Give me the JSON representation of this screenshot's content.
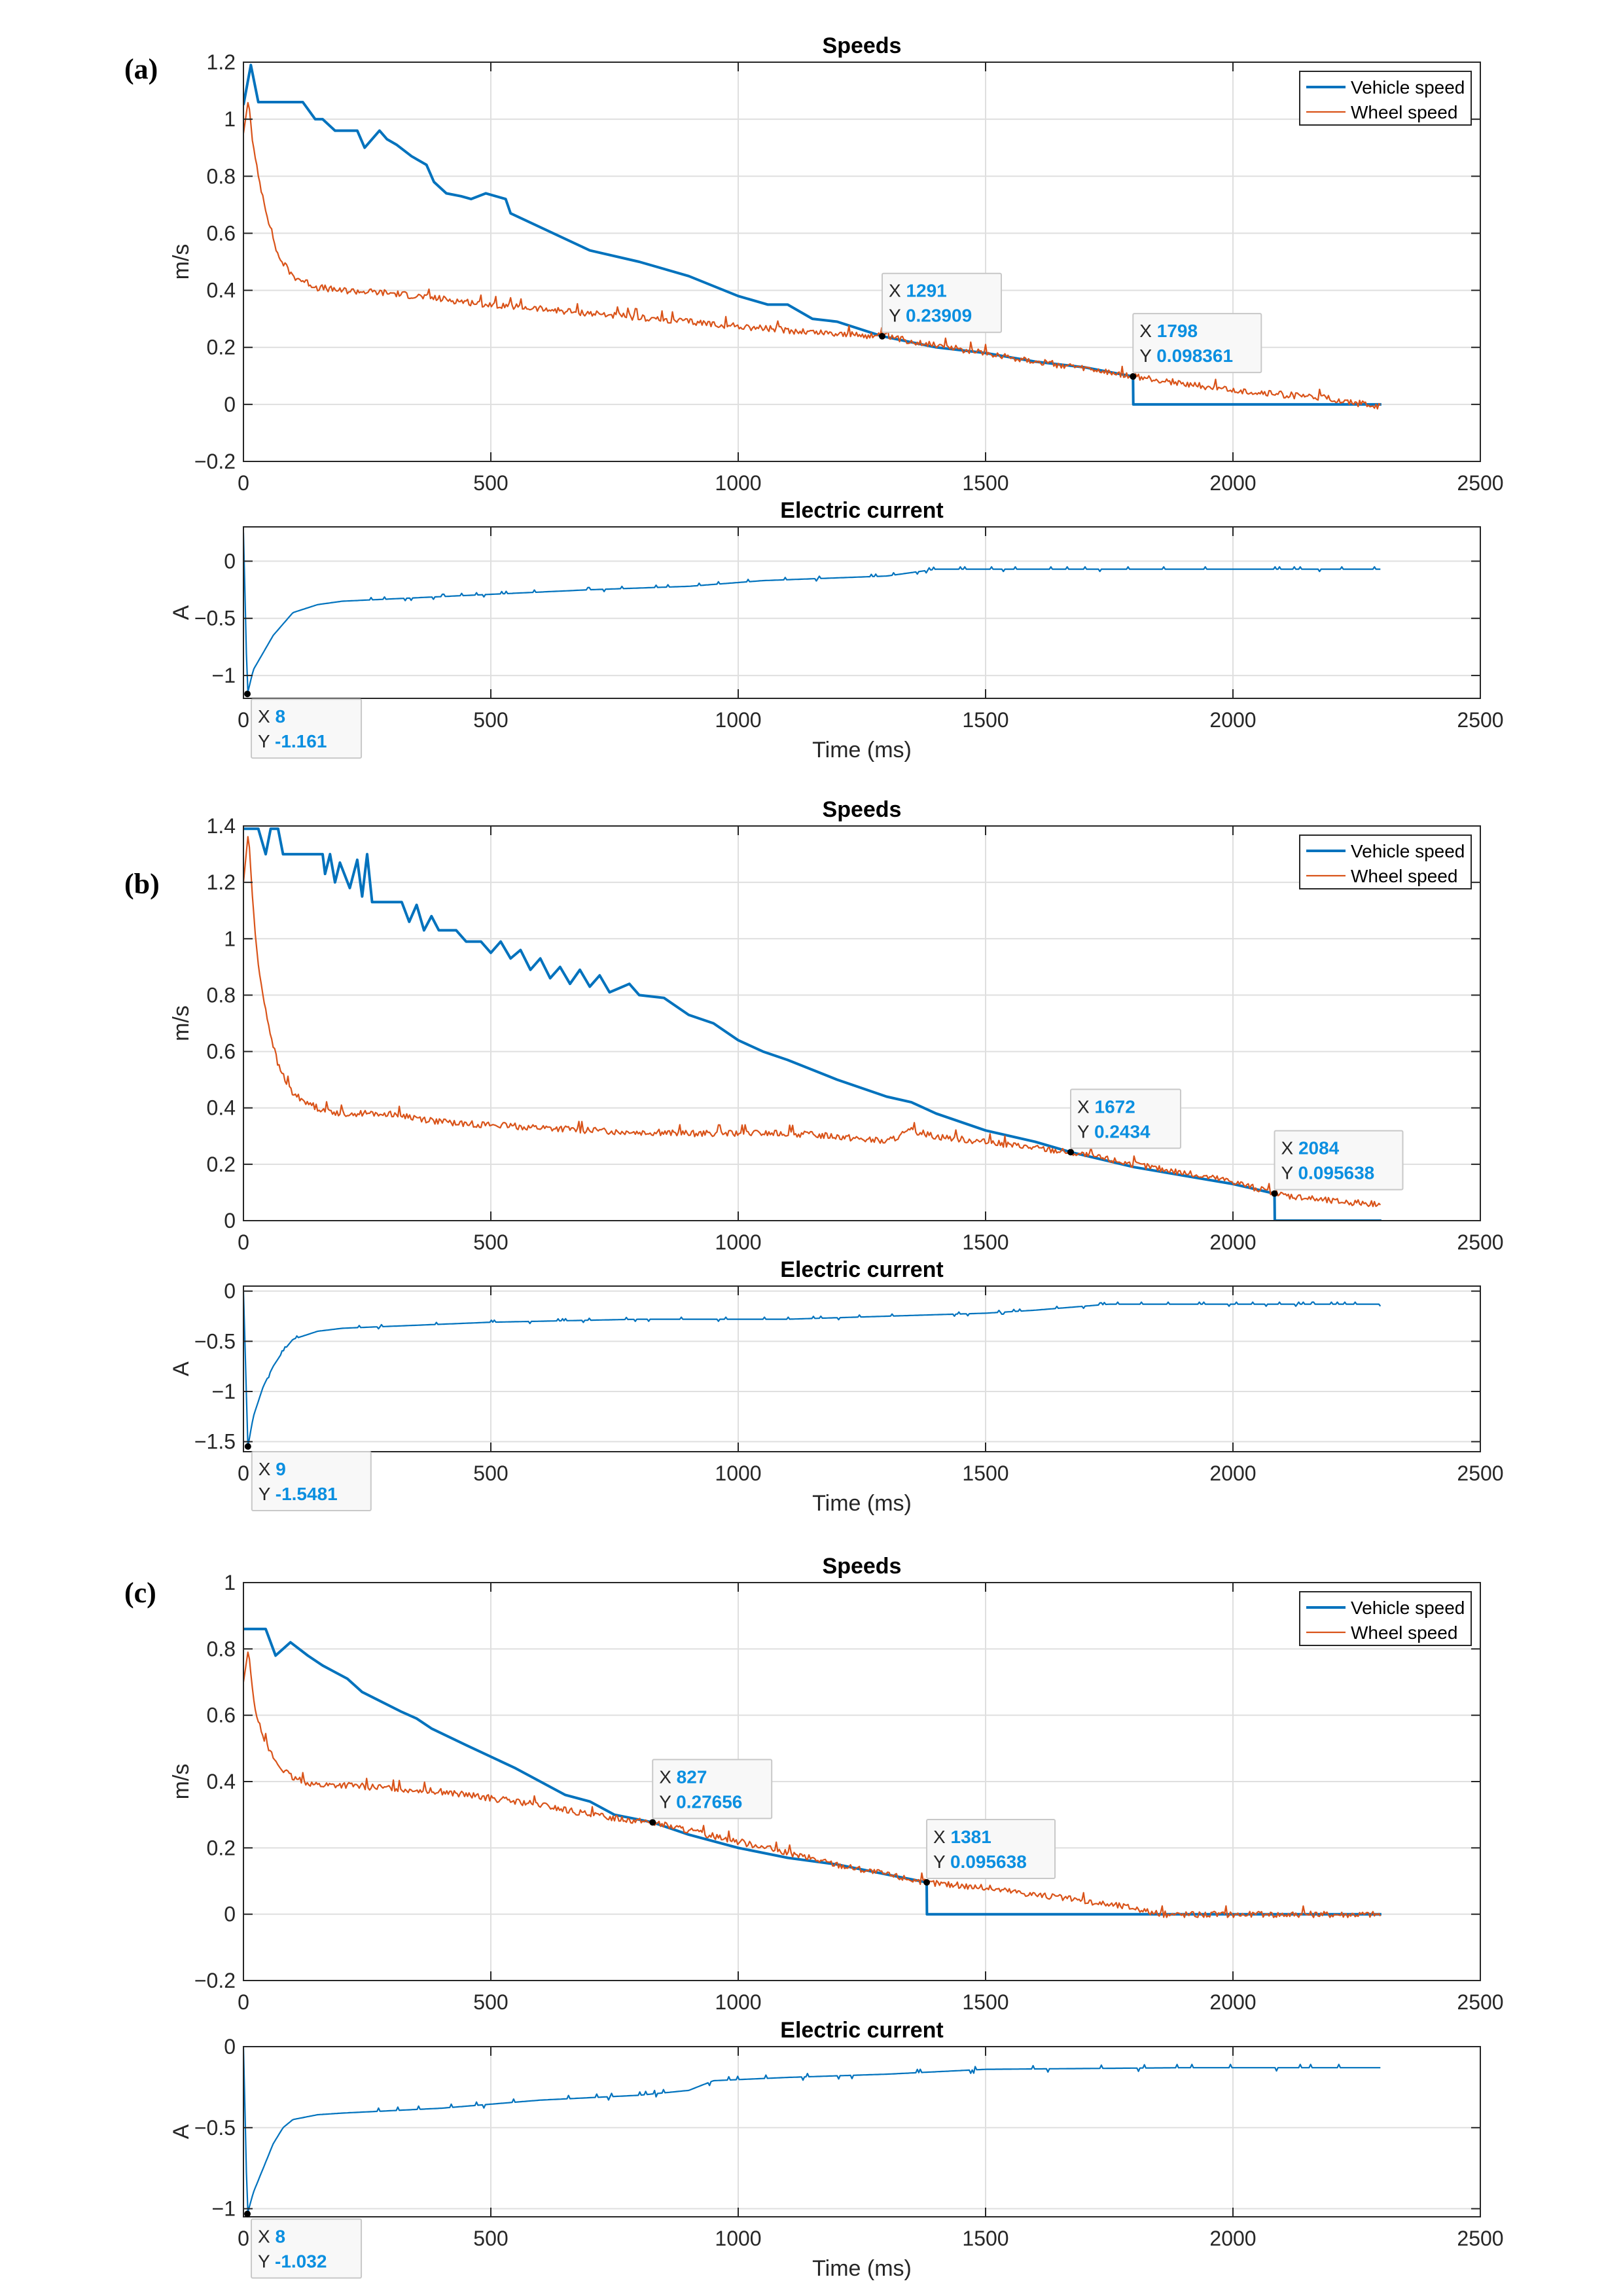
{
  "panels": [
    {
      "label": "(a)",
      "speeds": {
        "type": "line",
        "title": "Speeds",
        "xlabel": "",
        "ylabel": "m/s",
        "xlim": [
          0,
          2500
        ],
        "ylim": [
          -0.2,
          1.2
        ],
        "xticks": [
          0,
          500,
          1000,
          1500,
          2000,
          2500
        ],
        "yticks": [
          -0.2,
          0,
          0.2,
          0.4,
          0.6,
          0.8,
          1,
          1.2
        ],
        "ytick_labels": [
          "−0.2",
          "0",
          "0.2",
          "0.4",
          "0.6",
          "0.8",
          "1",
          "1.2"
        ],
        "grid": true,
        "legend": "top-right",
        "series": [
          {
            "name": "Vehicle speed",
            "color": "#0072BD",
            "x": [
              0,
              15,
              30,
              120,
              145,
              160,
              185,
              230,
              245,
              275,
              290,
              310,
              340,
              370,
              385,
              410,
              440,
              460,
              490,
              530,
              540,
              700,
              800,
              900,
              1000,
              1060,
              1100,
              1150,
              1200,
              1291,
              1400,
              1500,
              1600,
              1700,
              1798,
              1798.5,
              2300
            ],
            "y": [
              1.05,
              1.19,
              1.06,
              1.06,
              1.0,
              1.0,
              0.96,
              0.96,
              0.9,
              0.96,
              0.93,
              0.91,
              0.87,
              0.84,
              0.78,
              0.74,
              0.73,
              0.72,
              0.74,
              0.72,
              0.67,
              0.54,
              0.5,
              0.45,
              0.38,
              0.35,
              0.35,
              0.3,
              0.29,
              0.239,
              0.2,
              0.18,
              0.15,
              0.13,
              0.098,
              0,
              0
            ]
          },
          {
            "name": "Wheel speed",
            "color": "#D95319",
            "noise": 0.012,
            "x": [
              0,
              10,
              20,
              30,
              50,
              70,
              100,
              150,
              200,
              300,
              400,
              500,
              700,
              900,
              1100,
              1291,
              1500,
              1798,
              2000,
              2200,
              2300
            ],
            "y": [
              0.95,
              1.07,
              0.9,
              0.8,
              0.65,
              0.52,
              0.45,
              0.41,
              0.4,
              0.39,
              0.37,
              0.35,
              0.32,
              0.29,
              0.26,
              0.239,
              0.18,
              0.098,
              0.05,
              0.02,
              -0.01
            ]
          }
        ],
        "annotations": [
          {
            "x": 1291,
            "y": 0.239,
            "x_text": "1291",
            "y_text": "0.23909",
            "placement": "above-right"
          },
          {
            "x": 1798,
            "y": 0.098,
            "x_text": "1798",
            "y_text": "0.098361",
            "placement": "above-right"
          }
        ]
      },
      "current": {
        "type": "line",
        "title": "Electric current",
        "xlabel": "Time (ms)",
        "ylabel": "A",
        "xlim": [
          0,
          2500
        ],
        "ylim": [
          -1.2,
          0.3
        ],
        "xticks": [
          0,
          500,
          1000,
          1500,
          2000,
          2500
        ],
        "yticks": [
          -1,
          -0.5,
          0
        ],
        "ytick_labels": [
          "−1",
          "−0.5",
          "0"
        ],
        "grid": true,
        "series": [
          {
            "name": "Current",
            "color": "#0072BD",
            "noise": 0.02,
            "x": [
              0,
              8,
              20,
              40,
              60,
              80,
              100,
              150,
              200,
              300,
              500,
              700,
              900,
              1050,
              1300,
              1400,
              1500,
              2000,
              2300
            ],
            "y": [
              0.25,
              -1.161,
              -0.95,
              -0.8,
              -0.65,
              -0.55,
              -0.45,
              -0.38,
              -0.35,
              -0.33,
              -0.29,
              -0.25,
              -0.22,
              -0.17,
              -0.13,
              -0.07,
              -0.07,
              -0.07,
              -0.07
            ]
          }
        ],
        "annotations": [
          {
            "x": 8,
            "y": -1.161,
            "x_text": "8",
            "y_text": "-1.161",
            "placement": "below-right"
          }
        ]
      }
    },
    {
      "label": "(b)",
      "speeds": {
        "type": "line",
        "title": "Speeds",
        "xlabel": "",
        "ylabel": "m/s",
        "xlim": [
          0,
          2500
        ],
        "ylim": [
          0,
          1.4
        ],
        "xticks": [
          0,
          500,
          1000,
          1500,
          2000,
          2500
        ],
        "yticks": [
          0,
          0.2,
          0.4,
          0.6,
          0.8,
          1,
          1.2,
          1.4
        ],
        "ytick_labels": [
          "0",
          "0.2",
          "0.4",
          "0.6",
          "0.8",
          "1",
          "1.2",
          "1.4"
        ],
        "grid": true,
        "legend": "top-right",
        "series": [
          {
            "name": "Vehicle speed",
            "color": "#0072BD",
            "x": [
              0,
              30,
              45,
              55,
              70,
              80,
              160,
              165,
              175,
              185,
              195,
              215,
              230,
              240,
              250,
              260,
              280,
              320,
              335,
              350,
              365,
              380,
              395,
              430,
              450,
              480,
              500,
              520,
              540,
              560,
              580,
              600,
              620,
              640,
              660,
              680,
              700,
              720,
              740,
              780,
              800,
              850,
              900,
              950,
              1000,
              1050,
              1100,
              1200,
              1300,
              1350,
              1400,
              1500,
              1600,
              1672,
              1800,
              1900,
              2000,
              2084,
              2084.5,
              2300
            ],
            "y": [
              1.39,
              1.39,
              1.3,
              1.39,
              1.39,
              1.3,
              1.3,
              1.23,
              1.3,
              1.2,
              1.27,
              1.18,
              1.28,
              1.15,
              1.3,
              1.13,
              1.13,
              1.13,
              1.06,
              1.12,
              1.03,
              1.08,
              1.03,
              1.03,
              0.99,
              0.99,
              0.95,
              0.99,
              0.93,
              0.96,
              0.89,
              0.93,
              0.86,
              0.9,
              0.84,
              0.89,
              0.83,
              0.87,
              0.81,
              0.84,
              0.8,
              0.79,
              0.73,
              0.7,
              0.64,
              0.6,
              0.57,
              0.5,
              0.44,
              0.42,
              0.38,
              0.32,
              0.28,
              0.243,
              0.19,
              0.16,
              0.13,
              0.096,
              0,
              0
            ]
          },
          {
            "name": "Wheel speed",
            "color": "#D95319",
            "noise": 0.012,
            "x": [
              0,
              10,
              20,
              30,
              50,
              70,
              100,
              150,
              200,
              300,
              400,
              500,
              700,
              900,
              1100,
              1200,
              1300,
              1350,
              1400,
              1500,
              1672,
              1800,
              2000,
              2084,
              2200,
              2300
            ],
            "y": [
              1.2,
              1.38,
              1.1,
              0.9,
              0.7,
              0.55,
              0.45,
              0.4,
              0.38,
              0.38,
              0.35,
              0.34,
              0.32,
              0.31,
              0.31,
              0.3,
              0.28,
              0.32,
              0.3,
              0.28,
              0.243,
              0.2,
              0.14,
              0.096,
              0.07,
              0.06
            ]
          }
        ],
        "annotations": [
          {
            "x": 1672,
            "y": 0.243,
            "x_text": "1672",
            "y_text": "0.2434",
            "placement": "above-right"
          },
          {
            "x": 2084,
            "y": 0.096,
            "x_text": "2084",
            "y_text": "0.095638",
            "placement": "above-right"
          }
        ]
      },
      "current": {
        "type": "line",
        "title": "Electric current",
        "xlabel": "Time (ms)",
        "ylabel": "A",
        "xlim": [
          0,
          2500
        ],
        "ylim": [
          -1.6,
          0.05
        ],
        "xticks": [
          0,
          500,
          1000,
          1500,
          2000,
          2500
        ],
        "yticks": [
          -1.5,
          -1,
          -0.5,
          0
        ],
        "ytick_labels": [
          "−1.5",
          "−1",
          "−0.5",
          "0"
        ],
        "grid": true,
        "series": [
          {
            "name": "Current",
            "color": "#0072BD",
            "noise": 0.02,
            "x": [
              0,
              9,
              20,
              40,
              60,
              80,
              100,
              150,
              200,
              300,
              500,
              800,
              1100,
              1300,
              1500,
              1600,
              1750,
              2300
            ],
            "y": [
              0,
              -1.548,
              -1.25,
              -0.95,
              -0.75,
              -0.6,
              -0.48,
              -0.4,
              -0.37,
              -0.35,
              -0.31,
              -0.28,
              -0.28,
              -0.25,
              -0.22,
              -0.19,
              -0.13,
              -0.13
            ]
          }
        ],
        "annotations": [
          {
            "x": 9,
            "y": -1.548,
            "x_text": "9",
            "y_text": "-1.5481",
            "placement": "below-right"
          }
        ]
      }
    },
    {
      "label": "(c)",
      "speeds": {
        "type": "line",
        "title": "Speeds",
        "xlabel": "",
        "ylabel": "m/s",
        "xlim": [
          0,
          2500
        ],
        "ylim": [
          -0.2,
          1.0
        ],
        "xticks": [
          0,
          500,
          1000,
          1500,
          2000,
          2500
        ],
        "yticks": [
          -0.2,
          0,
          0.2,
          0.4,
          0.6,
          0.8,
          1
        ],
        "ytick_labels": [
          "−0.2",
          "0",
          "0.2",
          "0.4",
          "0.6",
          "0.8",
          "1"
        ],
        "grid": true,
        "legend": "top-right",
        "series": [
          {
            "name": "Vehicle speed",
            "color": "#0072BD",
            "x": [
              0,
              45,
              65,
              95,
              130,
              160,
              210,
              240,
              280,
              320,
              350,
              380,
              450,
              550,
              600,
              650,
              700,
              750,
              827,
              900,
              1000,
              1100,
              1200,
              1300,
              1381,
              1381.5,
              2300
            ],
            "y": [
              0.86,
              0.86,
              0.78,
              0.82,
              0.78,
              0.75,
              0.71,
              0.67,
              0.64,
              0.61,
              0.59,
              0.56,
              0.51,
              0.44,
              0.4,
              0.36,
              0.34,
              0.3,
              0.277,
              0.24,
              0.2,
              0.17,
              0.15,
              0.12,
              0.096,
              0,
              0
            ]
          },
          {
            "name": "Wheel speed",
            "color": "#D95319",
            "noise": 0.01,
            "x": [
              0,
              10,
              20,
              30,
              50,
              70,
              100,
              150,
              200,
              300,
              400,
              500,
              600,
              700,
              827,
              1000,
              1200,
              1381,
              1500,
              1600,
              1700,
              1800,
              1850,
              2000,
              2300
            ],
            "y": [
              0.7,
              0.8,
              0.65,
              0.58,
              0.5,
              0.45,
              0.41,
              0.39,
              0.39,
              0.38,
              0.37,
              0.35,
              0.33,
              0.3,
              0.277,
              0.22,
              0.15,
              0.096,
              0.08,
              0.06,
              0.04,
              0.02,
              0.0,
              0.0,
              0.0
            ]
          }
        ],
        "annotations": [
          {
            "x": 827,
            "y": 0.277,
            "x_text": "827",
            "y_text": "0.27656",
            "placement": "above-right"
          },
          {
            "x": 1381,
            "y": 0.096,
            "x_text": "1381",
            "y_text": "0.095638",
            "placement": "above-right"
          }
        ]
      },
      "current": {
        "type": "line",
        "title": "Electric current",
        "xlabel": "Time (ms)",
        "ylabel": "A",
        "xlim": [
          0,
          2500
        ],
        "ylim": [
          -1.05,
          0
        ],
        "xticks": [
          0,
          500,
          1000,
          1500,
          2000,
          2500
        ],
        "yticks": [
          -1,
          -0.5,
          0
        ],
        "ytick_labels": [
          "−1",
          "−0.5",
          "0"
        ],
        "grid": true,
        "series": [
          {
            "name": "Current",
            "color": "#0072BD",
            "noise": 0.02,
            "x": [
              0,
              8,
              20,
              40,
              60,
              80,
              100,
              150,
              200,
              400,
              600,
              800,
              900,
              950,
              1100,
              1300,
              1500,
              1900,
              2100,
              2300
            ],
            "y": [
              0,
              -1.032,
              -0.9,
              -0.75,
              -0.6,
              -0.5,
              -0.45,
              -0.42,
              -0.41,
              -0.38,
              -0.33,
              -0.3,
              -0.27,
              -0.21,
              -0.19,
              -0.17,
              -0.14,
              -0.13,
              -0.13,
              -0.13
            ]
          }
        ],
        "annotations": [
          {
            "x": 8,
            "y": -1.032,
            "x_text": "8",
            "y_text": "-1.032",
            "placement": "below-right"
          }
        ]
      }
    }
  ]
}
